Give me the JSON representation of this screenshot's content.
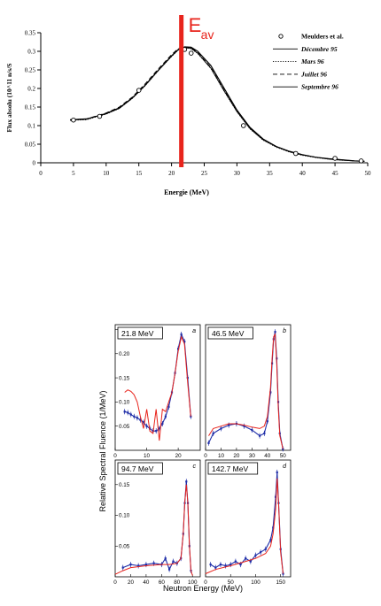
{
  "chart_data": [
    {
      "type": "line",
      "title": "",
      "xlabel": "Energie (MeV)",
      "ylabel": "Flux absolu (10^11 n/s/S",
      "xlim": [
        0,
        50
      ],
      "ylim": [
        0,
        0.35
      ],
      "xticks": [
        0,
        5,
        10,
        15,
        20,
        25,
        30,
        35,
        40,
        45,
        50
      ],
      "yticks": [
        0,
        0.05,
        0.1,
        0.15,
        0.2,
        0.25,
        0.3,
        0.35
      ],
      "xtick_labels": [
        "0",
        "5",
        "10",
        "15",
        "20",
        "25",
        "30",
        "35",
        "40",
        "45",
        "50"
      ],
      "ytick_labels": [
        "0",
        "0.05",
        "0.1",
        "0.15",
        "0.2",
        "0.25",
        "0.3",
        "0.35"
      ],
      "grid": false,
      "legend_position": "top-right",
      "annotation": {
        "text": "E",
        "subscript": "av",
        "x": 21.5,
        "color": "#e8241c"
      },
      "series": [
        {
          "name": "Meulders et al.",
          "style": "markers",
          "x": [
            5,
            9,
            15,
            22,
            23,
            31,
            39,
            45,
            49
          ],
          "y": [
            0.115,
            0.125,
            0.195,
            0.305,
            0.295,
            0.1,
            0.025,
            0.012,
            0.005
          ]
        },
        {
          "name": "Décembre 95",
          "style": "solid",
          "x": [
            4.5,
            7,
            10,
            12,
            14,
            16,
            18,
            20,
            21,
            22,
            23,
            24,
            26,
            28,
            30,
            32,
            34,
            36,
            38,
            40,
            42,
            44,
            46,
            48,
            49.5
          ],
          "y": [
            0.115,
            0.117,
            0.133,
            0.148,
            0.175,
            0.21,
            0.25,
            0.288,
            0.305,
            0.31,
            0.308,
            0.295,
            0.255,
            0.195,
            0.138,
            0.092,
            0.062,
            0.043,
            0.03,
            0.021,
            0.015,
            0.01,
            0.007,
            0.005,
            0.004
          ]
        },
        {
          "name": "Mars 96",
          "style": "dotted",
          "x": [
            4.5,
            7,
            10,
            12,
            14,
            16,
            18,
            20,
            21,
            22,
            23,
            24,
            26,
            28,
            30,
            32,
            34,
            36,
            38,
            40,
            42,
            44,
            46,
            48,
            49.5
          ],
          "y": [
            0.114,
            0.116,
            0.131,
            0.146,
            0.173,
            0.208,
            0.248,
            0.286,
            0.303,
            0.309,
            0.307,
            0.294,
            0.254,
            0.194,
            0.137,
            0.091,
            0.061,
            0.042,
            0.029,
            0.02,
            0.014,
            0.01,
            0.007,
            0.005,
            0.004
          ]
        },
        {
          "name": "Juillet 96",
          "style": "dashed",
          "x": [
            4.5,
            7,
            10,
            12,
            14,
            16,
            18,
            20,
            21,
            22,
            23,
            24,
            26,
            28,
            30,
            32,
            34,
            36,
            38,
            40,
            42,
            44,
            46,
            48,
            49.5
          ],
          "y": [
            0.116,
            0.118,
            0.134,
            0.15,
            0.177,
            0.213,
            0.253,
            0.291,
            0.307,
            0.312,
            0.31,
            0.297,
            0.257,
            0.197,
            0.14,
            0.093,
            0.063,
            0.044,
            0.031,
            0.022,
            0.015,
            0.011,
            0.008,
            0.005,
            0.004
          ]
        },
        {
          "name": "Septembre 96",
          "style": "solid",
          "x": [
            4.5,
            7,
            10,
            12,
            14,
            16,
            18,
            20,
            21,
            22,
            23,
            24,
            26,
            28,
            30,
            32,
            34,
            36,
            38,
            40,
            42,
            44,
            46,
            48,
            49.5
          ],
          "y": [
            0.116,
            0.118,
            0.132,
            0.147,
            0.174,
            0.209,
            0.249,
            0.287,
            0.304,
            0.312,
            0.311,
            0.3,
            0.262,
            0.202,
            0.142,
            0.095,
            0.064,
            0.044,
            0.031,
            0.022,
            0.015,
            0.011,
            0.008,
            0.005,
            0.004
          ]
        }
      ]
    },
    {
      "type": "line",
      "title": "",
      "xlabel": "Neutron Energy (MeV)",
      "ylabel": "Relative Spectral Fluence (1/MeV)",
      "grid": false,
      "colors": {
        "measured": "#1f2ea8",
        "calculated": "#e8241c"
      },
      "panels": [
        {
          "label": "21.8 MeV",
          "letter": "a",
          "xlim": [
            0,
            27
          ],
          "ylim": [
            0,
            0.26
          ],
          "xticks": [
            0,
            10,
            20
          ],
          "xtick_labels": [
            "0",
            "10",
            "20"
          ],
          "yticks": [
            0.05,
            0.1,
            0.15,
            0.2,
            0.25
          ],
          "ytick_labels": [
            "0.05",
            "0.10",
            "0.15",
            "0.20",
            "0.25"
          ],
          "calculated": {
            "x": [
              3,
              4,
              5,
              6,
              7,
              8,
              9,
              10,
              11,
              12,
              13,
              14,
              15,
              16,
              17,
              18,
              19,
              20,
              21,
              22,
              23,
              24
            ],
            "y": [
              0.12,
              0.125,
              0.122,
              0.115,
              0.1,
              0.07,
              0.045,
              0.085,
              0.04,
              0.035,
              0.085,
              0.02,
              0.085,
              0.08,
              0.1,
              0.12,
              0.16,
              0.205,
              0.235,
              0.22,
              0.14,
              0.07
            ]
          },
          "measured": {
            "x": [
              3,
              4,
              5,
              6,
              7,
              8,
              9,
              10,
              11,
              12,
              13,
              14,
              15,
              16,
              17,
              18,
              19,
              20,
              21,
              22,
              23,
              24
            ],
            "y": [
              0.08,
              0.078,
              0.074,
              0.07,
              0.067,
              0.063,
              0.058,
              0.05,
              0.045,
              0.04,
              0.04,
              0.045,
              0.055,
              0.07,
              0.09,
              0.12,
              0.16,
              0.21,
              0.24,
              0.225,
              0.15,
              0.07
            ]
          }
        },
        {
          "label": "46.5 MeV",
          "letter": "b",
          "xlim": [
            0,
            55
          ],
          "ylim": [
            0,
            0.26
          ],
          "xticks": [
            0,
            10,
            20,
            30,
            40,
            50
          ],
          "xtick_labels": [
            "0",
            "10",
            "20",
            "30",
            "40",
            "50"
          ],
          "yticks": [],
          "ytick_labels": [],
          "calculated": {
            "x": [
              2,
              5,
              10,
              15,
              20,
              25,
              30,
              35,
              38,
              40,
              42,
              43,
              44,
              45,
              46,
              47,
              48,
              50
            ],
            "y": [
              0.03,
              0.045,
              0.05,
              0.055,
              0.055,
              0.052,
              0.048,
              0.045,
              0.05,
              0.07,
              0.13,
              0.19,
              0.235,
              0.24,
              0.18,
              0.09,
              0.03,
              0.003
            ]
          },
          "measured": {
            "x": [
              2,
              5,
              10,
              15,
              20,
              25,
              30,
              35,
              38,
              40,
              42,
              43,
              44,
              45,
              46,
              47,
              48,
              50
            ],
            "y": [
              0.015,
              0.035,
              0.045,
              0.052,
              0.055,
              0.05,
              0.042,
              0.03,
              0.035,
              0.06,
              0.12,
              0.18,
              0.23,
              0.245,
              0.19,
              0.1,
              0.035,
              0.003
            ]
          }
        },
        {
          "label": "94.7 MeV",
          "letter": "c",
          "xlim": [
            0,
            110
          ],
          "ylim": [
            0,
            0.19
          ],
          "xticks": [
            0,
            20,
            40,
            60,
            80,
            100
          ],
          "xtick_labels": [
            "0",
            "20",
            "40",
            "60",
            "80",
            "100"
          ],
          "yticks": [
            0.05,
            0.1,
            0.15
          ],
          "ytick_labels": [
            "0.05",
            "0.10",
            "0.15"
          ],
          "calculated": {
            "x": [
              0,
              10,
              20,
              40,
              60,
              70,
              80,
              85,
              88,
              90,
              92,
              94,
              96,
              98,
              100
            ],
            "y": [
              0.004,
              0.01,
              0.015,
              0.018,
              0.02,
              0.02,
              0.022,
              0.03,
              0.07,
              0.12,
              0.15,
              0.12,
              0.05,
              0.01,
              0.002
            ]
          },
          "measured": {
            "x": [
              10,
              20,
              30,
              40,
              50,
              60,
              65,
              70,
              75,
              80,
              85,
              88,
              90,
              92,
              94,
              96,
              98
            ],
            "y": [
              0.015,
              0.02,
              0.018,
              0.02,
              0.022,
              0.02,
              0.03,
              0.012,
              0.025,
              0.022,
              0.03,
              0.07,
              0.12,
              0.155,
              0.12,
              0.05,
              0.01
            ]
          }
        },
        {
          "label": "142.7 MeV",
          "letter": "d",
          "xlim": [
            0,
            170
          ],
          "ylim": [
            0,
            0.19
          ],
          "xticks": [
            0,
            50,
            100,
            150
          ],
          "xtick_labels": [
            "0",
            "50",
            "100",
            "150"
          ],
          "yticks": [],
          "ytick_labels": [],
          "calculated": {
            "x": [
              0,
              20,
              50,
              80,
              100,
              120,
              130,
              135,
              140,
              143,
              146,
              150,
              155
            ],
            "y": [
              0.005,
              0.012,
              0.018,
              0.025,
              0.03,
              0.038,
              0.05,
              0.07,
              0.11,
              0.16,
              0.12,
              0.04,
              0.005
            ]
          },
          "measured": {
            "x": [
              10,
              20,
              30,
              40,
              50,
              60,
              70,
              80,
              90,
              100,
              110,
              120,
              130,
              135,
              140,
              143,
              146,
              150,
              155
            ],
            "y": [
              0.02,
              0.015,
              0.02,
              0.018,
              0.02,
              0.025,
              0.02,
              0.03,
              0.025,
              0.035,
              0.04,
              0.045,
              0.06,
              0.08,
              0.13,
              0.17,
              0.12,
              0.045,
              0.005
            ]
          }
        }
      ]
    }
  ]
}
